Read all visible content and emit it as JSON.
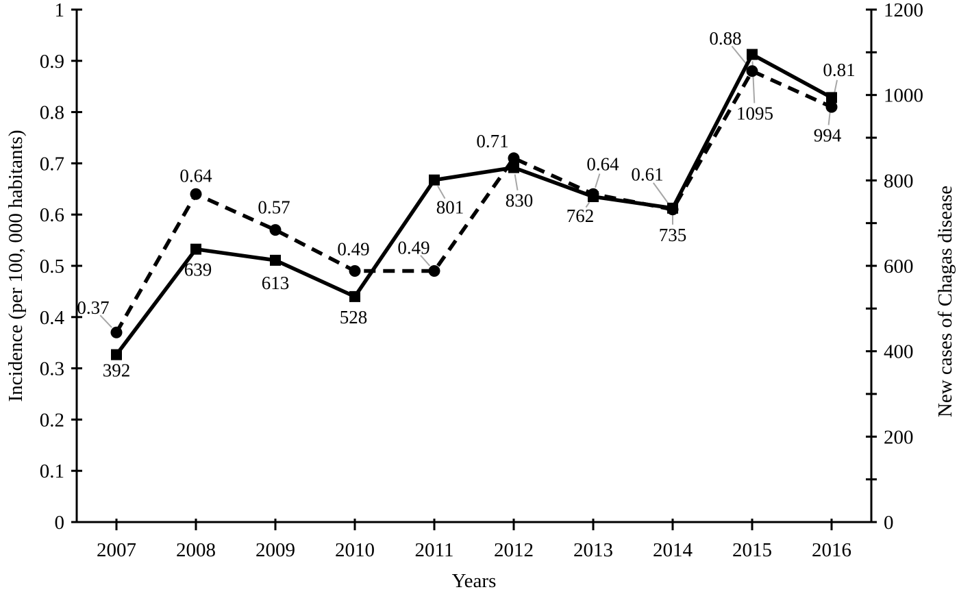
{
  "chart_data": {
    "type": "line",
    "xlabel": "Years",
    "years": [
      "2007",
      "2008",
      "2009",
      "2010",
      "2011",
      "2012",
      "2013",
      "2014",
      "2015",
      "2016"
    ],
    "left_axis": {
      "label": "Incidence (per 100, 000 habitants)",
      "min": 0,
      "max": 1,
      "tick_labels": [
        "0",
        "0.1",
        "0.2",
        "0.3",
        "0.4",
        "0.5",
        "0.6",
        "0.7",
        "0.8",
        "0.9",
        "1"
      ]
    },
    "right_axis": {
      "label": "New cases of Chagas disease",
      "min": 0,
      "max": 1200,
      "tick_step": 100,
      "label_step": 200,
      "tick_labels": [
        "0",
        "200",
        "400",
        "600",
        "800",
        "1000",
        "1200"
      ]
    },
    "colors": {
      "series": "#000000",
      "leader_line": "#a6a6a6",
      "text": "#000000",
      "background": "#ffffff"
    },
    "legend": "none",
    "grid": "off",
    "series": [
      {
        "id": "incidence",
        "name": "Incidence (per 100, 000 habitants)",
        "axis": "left",
        "marker": "circle",
        "line": "dashed",
        "values": [
          0.37,
          0.64,
          0.57,
          0.49,
          0.49,
          0.71,
          0.64,
          0.61,
          0.88,
          0.81
        ],
        "point_labels": [
          {
            "text": "0.37",
            "dx": -34,
            "dy": -36,
            "leader": true
          },
          {
            "text": "0.64",
            "dx": 0,
            "dy": -27,
            "leader": false
          },
          {
            "text": "0.57",
            "dx": -2,
            "dy": -33,
            "leader": false
          },
          {
            "text": "0.49",
            "dx": -2,
            "dy": -32,
            "leader": false
          },
          {
            "text": "0.49",
            "dx": -30,
            "dy": -34,
            "leader": true
          },
          {
            "text": "0.71",
            "dx": -31,
            "dy": -25,
            "leader": false
          },
          {
            "text": "0.64",
            "dx": 14,
            "dy": -44,
            "leader": true
          },
          {
            "text": "0.61",
            "dx": -37,
            "dy": -51,
            "leader": true
          },
          {
            "text": "0.88",
            "dx": -39,
            "dy": -48,
            "leader": true
          },
          {
            "text": "0.81",
            "dx": 11,
            "dy": -54,
            "leader": true
          }
        ]
      },
      {
        "id": "new-cases",
        "name": "New cases of Chagas disease",
        "axis": "right",
        "marker": "square",
        "line": "solid",
        "values": [
          392,
          639,
          613,
          528,
          801,
          830,
          762,
          735,
          1095,
          994
        ],
        "point_labels": [
          {
            "text": "392",
            "dx": 0,
            "dy": 23,
            "leader": false
          },
          {
            "text": "639",
            "dx": 3,
            "dy": 30,
            "leader": false
          },
          {
            "text": "613",
            "dx": 0,
            "dy": 33,
            "leader": false
          },
          {
            "text": "528",
            "dx": -2,
            "dy": 30,
            "leader": false
          },
          {
            "text": "801",
            "dx": 23,
            "dy": 40,
            "leader": true
          },
          {
            "text": "830",
            "dx": 8,
            "dy": 48,
            "leader": true
          },
          {
            "text": "762",
            "dx": -19,
            "dy": 28,
            "leader": true
          },
          {
            "text": "735",
            "dx": 0,
            "dy": 39,
            "leader": true
          },
          {
            "text": "1095",
            "dx": 4,
            "dy": 86,
            "leader": true
          },
          {
            "text": "994",
            "dx": -6,
            "dy": 55,
            "leader": true
          }
        ]
      }
    ]
  }
}
